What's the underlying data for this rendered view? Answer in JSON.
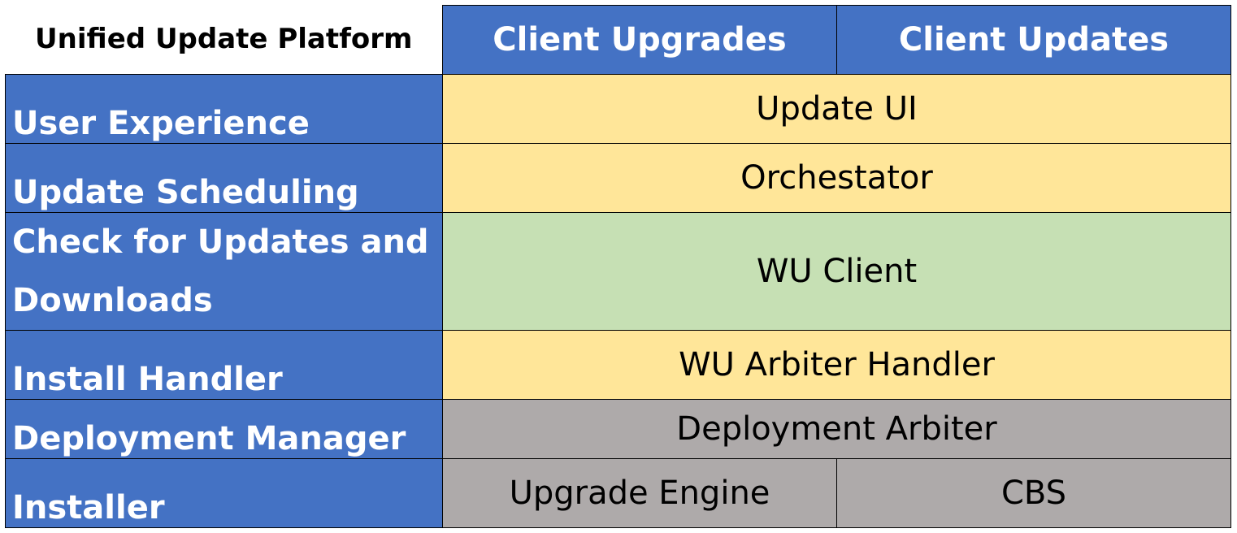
{
  "title": "Unified Update Platform",
  "columns": [
    "Client Upgrades",
    "Client Updates"
  ],
  "rows": [
    {
      "label": "User Experience",
      "values": [
        "Update UI"
      ]
    },
    {
      "label": "Update Scheduling",
      "values": [
        "Orchestator"
      ]
    },
    {
      "label": "Check for Updates and Downloads",
      "values": [
        "WU Client"
      ]
    },
    {
      "label": "Install Handler",
      "values": [
        "WU Arbiter Handler"
      ]
    },
    {
      "label": "Deployment Manager",
      "values": [
        "Deployment Arbiter"
      ]
    },
    {
      "label": "Installer",
      "values": [
        "Upgrade Engine",
        "CBS"
      ]
    }
  ],
  "colors": {
    "header": "#4472C4",
    "yellow": "#FFE699",
    "green": "#C6E0B4",
    "gray": "#AEAAAA"
  }
}
